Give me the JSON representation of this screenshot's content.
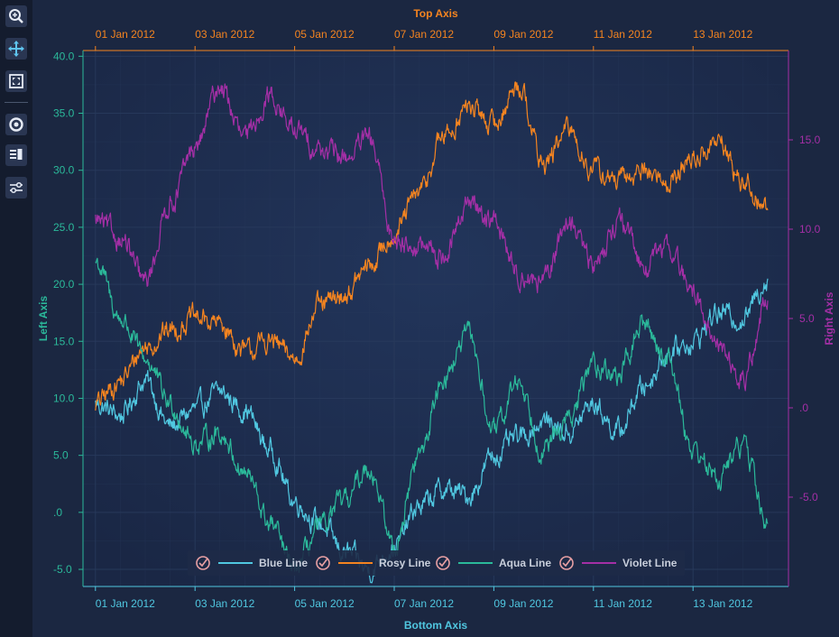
{
  "toolbar": {
    "tools": [
      {
        "name": "zoom-in-icon"
      },
      {
        "name": "pan-icon"
      },
      {
        "name": "zoom-extents-icon"
      },
      {
        "name": "rotate-icon"
      },
      {
        "name": "legend-icon"
      },
      {
        "name": "settings-sliders-icon"
      }
    ]
  },
  "colors": {
    "background": "#1b2741",
    "plot": "#1c2b4d",
    "grid": "#283a5c",
    "blue": "#50c7e0",
    "rosy": "#f48420",
    "aqua": "#2bb99a",
    "violet": "#a42fa6",
    "top_axis": "#f48420",
    "left_axis": "#2bb99a",
    "right_axis": "#a42fa6",
    "bottom_axis": "#50c7e0"
  },
  "chart_data": {
    "type": "line",
    "axes": {
      "top": {
        "title": "Top Axis",
        "ticks": [
          "01 Jan 2012",
          "03 Jan 2012",
          "05 Jan 2012",
          "07 Jan 2012",
          "09 Jan 2012",
          "11 Jan 2012",
          "13 Jan 2012"
        ]
      },
      "bottom": {
        "title": "Bottom Axis",
        "ticks": [
          "01 Jan 2012",
          "03 Jan 2012",
          "05 Jan 2012",
          "07 Jan 2012",
          "09 Jan 2012",
          "11 Jan 2012",
          "13 Jan 2012"
        ]
      },
      "left": {
        "title": "Left Axis",
        "ticks": [
          "40.0",
          "35.0",
          "30.0",
          "25.0",
          "20.0",
          "15.0",
          "10.0",
          "5.0",
          ".0",
          "-5.0"
        ],
        "range": [
          -6.5,
          40.5
        ]
      },
      "right": {
        "title": "Right Axis",
        "ticks": [
          "15.0",
          "10.0",
          "5.0",
          ".0",
          "-5.0"
        ],
        "range": [
          -10.0,
          20.0
        ]
      }
    },
    "x_range": [
      "2011-12-31T18:00",
      "2012-01-14T22:00"
    ],
    "grid": true,
    "legend_position": "bottom-center",
    "series": [
      {
        "name": "Blue Line",
        "axis": "left",
        "color": "#50c7e0",
        "checked": true,
        "points": [
          [
            "2012-01-01T00:00",
            9.5
          ],
          [
            "2012-01-01T12:00",
            8.5
          ],
          [
            "2012-01-02T00:00",
            11.5
          ],
          [
            "2012-01-02T12:00",
            7.5
          ],
          [
            "2012-01-03T00:00",
            9.0
          ],
          [
            "2012-01-03T12:00",
            10.5
          ],
          [
            "2012-01-04T00:00",
            9.0
          ],
          [
            "2012-01-04T12:00",
            5.5
          ],
          [
            "2012-01-05T00:00",
            1.0
          ],
          [
            "2012-01-05T12:00",
            -1.0
          ],
          [
            "2012-01-06T00:00",
            -3.5
          ],
          [
            "2012-01-06T12:00",
            -5.0
          ],
          [
            "2012-01-07T00:00",
            -3.0
          ],
          [
            "2012-01-07T12:00",
            0.5
          ],
          [
            "2012-01-08T00:00",
            2.0
          ],
          [
            "2012-01-08T12:00",
            1.5
          ],
          [
            "2012-01-09T00:00",
            5.0
          ],
          [
            "2012-01-09T12:00",
            6.5
          ],
          [
            "2012-01-10T00:00",
            8.0
          ],
          [
            "2012-01-10T12:00",
            7.0
          ],
          [
            "2012-01-11T00:00",
            9.5
          ],
          [
            "2012-01-11T12:00",
            7.0
          ],
          [
            "2012-01-12T00:00",
            11.0
          ],
          [
            "2012-01-12T12:00",
            14.0
          ],
          [
            "2012-01-13T00:00",
            15.0
          ],
          [
            "2012-01-13T12:00",
            17.5
          ],
          [
            "2012-01-14T00:00",
            17.0
          ],
          [
            "2012-01-14T12:00",
            20.5
          ]
        ]
      },
      {
        "name": "Rosy Line",
        "axis": "left",
        "color": "#f48420",
        "checked": true,
        "points": [
          [
            "2012-01-01T00:00",
            9.5
          ],
          [
            "2012-01-01T12:00",
            11.5
          ],
          [
            "2012-01-02T00:00",
            14.5
          ],
          [
            "2012-01-02T12:00",
            16.0
          ],
          [
            "2012-01-03T00:00",
            17.0
          ],
          [
            "2012-01-03T12:00",
            16.5
          ],
          [
            "2012-01-04T00:00",
            14.0
          ],
          [
            "2012-01-04T12:00",
            15.0
          ],
          [
            "2012-01-05T00:00",
            13.5
          ],
          [
            "2012-01-05T12:00",
            18.0
          ],
          [
            "2012-01-06T00:00",
            19.0
          ],
          [
            "2012-01-06T12:00",
            21.5
          ],
          [
            "2012-01-07T00:00",
            24.5
          ],
          [
            "2012-01-07T12:00",
            28.0
          ],
          [
            "2012-01-08T00:00",
            33.0
          ],
          [
            "2012-01-08T12:00",
            35.5
          ],
          [
            "2012-01-09T00:00",
            34.0
          ],
          [
            "2012-01-09T12:00",
            37.5
          ],
          [
            "2012-01-10T00:00",
            30.5
          ],
          [
            "2012-01-10T12:00",
            33.5
          ],
          [
            "2012-01-11T00:00",
            30.0
          ],
          [
            "2012-01-11T12:00",
            29.0
          ],
          [
            "2012-01-12T00:00",
            30.0
          ],
          [
            "2012-01-12T12:00",
            29.0
          ],
          [
            "2012-01-13T00:00",
            31.0
          ],
          [
            "2012-01-13T12:00",
            32.5
          ],
          [
            "2012-01-14T00:00",
            29.0
          ],
          [
            "2012-01-14T12:00",
            26.5
          ]
        ]
      },
      {
        "name": "Aqua Line",
        "axis": "left",
        "color": "#2bb99a",
        "checked": true,
        "points": [
          [
            "2012-01-01T00:00",
            22.0
          ],
          [
            "2012-01-01T12:00",
            17.0
          ],
          [
            "2012-01-02T00:00",
            13.5
          ],
          [
            "2012-01-02T12:00",
            9.5
          ],
          [
            "2012-01-03T00:00",
            6.0
          ],
          [
            "2012-01-03T12:00",
            7.0
          ],
          [
            "2012-01-04T00:00",
            3.5
          ],
          [
            "2012-01-04T12:00",
            -1.0
          ],
          [
            "2012-01-05T00:00",
            -5.0
          ],
          [
            "2012-01-05T12:00",
            -1.5
          ],
          [
            "2012-01-06T00:00",
            1.0
          ],
          [
            "2012-01-06T12:00",
            4.0
          ],
          [
            "2012-01-07T00:00",
            -3.0
          ],
          [
            "2012-01-07T12:00",
            5.0
          ],
          [
            "2012-01-08T00:00",
            12.0
          ],
          [
            "2012-01-08T12:00",
            15.5
          ],
          [
            "2012-01-09T00:00",
            7.0
          ],
          [
            "2012-01-09T12:00",
            11.5
          ],
          [
            "2012-01-10T00:00",
            5.5
          ],
          [
            "2012-01-10T12:00",
            8.0
          ],
          [
            "2012-01-11T00:00",
            13.0
          ],
          [
            "2012-01-11T12:00",
            12.0
          ],
          [
            "2012-01-12T00:00",
            16.5
          ],
          [
            "2012-01-12T12:00",
            13.5
          ],
          [
            "2012-01-13T00:00",
            5.5
          ],
          [
            "2012-01-13T12:00",
            3.0
          ],
          [
            "2012-01-14T00:00",
            6.0
          ],
          [
            "2012-01-14T12:00",
            -1.0
          ]
        ]
      },
      {
        "name": "Violet Line",
        "axis": "right",
        "color": "#a42fa6",
        "checked": true,
        "points": [
          [
            "2012-01-01T00:00",
            10.5
          ],
          [
            "2012-01-01T12:00",
            9.5
          ],
          [
            "2012-01-02T00:00",
            7.0
          ],
          [
            "2012-01-02T12:00",
            11.5
          ],
          [
            "2012-01-03T00:00",
            14.5
          ],
          [
            "2012-01-03T12:00",
            18.0
          ],
          [
            "2012-01-04T00:00",
            15.0
          ],
          [
            "2012-01-04T12:00",
            17.5
          ],
          [
            "2012-01-05T00:00",
            15.5
          ],
          [
            "2012-01-05T12:00",
            14.5
          ],
          [
            "2012-01-06T00:00",
            14.0
          ],
          [
            "2012-01-06T12:00",
            15.0
          ],
          [
            "2012-01-07T00:00",
            9.5
          ],
          [
            "2012-01-07T12:00",
            9.0
          ],
          [
            "2012-01-08T00:00",
            8.5
          ],
          [
            "2012-01-08T12:00",
            11.5
          ],
          [
            "2012-01-09T00:00",
            10.5
          ],
          [
            "2012-01-09T12:00",
            7.5
          ],
          [
            "2012-01-10T00:00",
            7.0
          ],
          [
            "2012-01-10T12:00",
            10.5
          ],
          [
            "2012-01-11T00:00",
            8.0
          ],
          [
            "2012-01-11T12:00",
            10.5
          ],
          [
            "2012-01-12T00:00",
            8.0
          ],
          [
            "2012-01-12T12:00",
            9.0
          ],
          [
            "2012-01-13T00:00",
            6.5
          ],
          [
            "2012-01-13T12:00",
            3.5
          ],
          [
            "2012-01-14T00:00",
            1.5
          ],
          [
            "2012-01-14T12:00",
            6.0
          ]
        ]
      }
    ]
  }
}
